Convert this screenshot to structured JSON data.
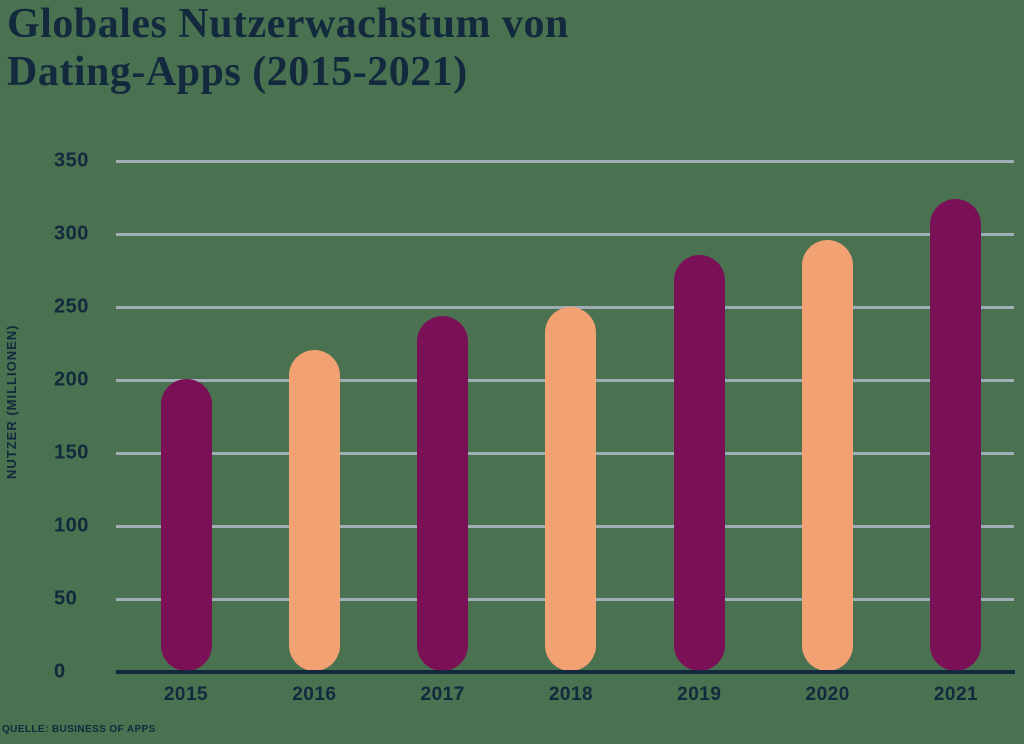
{
  "header": {
    "title_line1": "Globales Nutzerwachstum von",
    "title_line2": "Dating-Apps (2015-2021)"
  },
  "footer": {
    "source": "QUELLE: BUSINESS OF APPS"
  },
  "chart_data": {
    "type": "bar",
    "title": "Globales Nutzerwachstum von Dating-Apps (2015-2021)",
    "categories": [
      "2015",
      "2016",
      "2017",
      "2018",
      "2019",
      "2020",
      "2021"
    ],
    "values": [
      200,
      220,
      243,
      249,
      285,
      295,
      323
    ],
    "xlabel": "",
    "ylabel": "NUTZER (MILLIONEN)",
    "ylim": [
      0,
      350
    ],
    "yticks": [
      0,
      50,
      100,
      150,
      200,
      250,
      300,
      350
    ],
    "grid": true,
    "legend": false,
    "bar_shape": "rounded-pill",
    "bar_colors_alternating": [
      "#7A1157",
      "#F2A173"
    ]
  },
  "colors": {
    "background": "#4A7150",
    "bar_dark": "#7A1157",
    "bar_light": "#F2A173",
    "text": "#13293D",
    "gridline": "#A0ADB6",
    "axis_line": "#13293D"
  }
}
